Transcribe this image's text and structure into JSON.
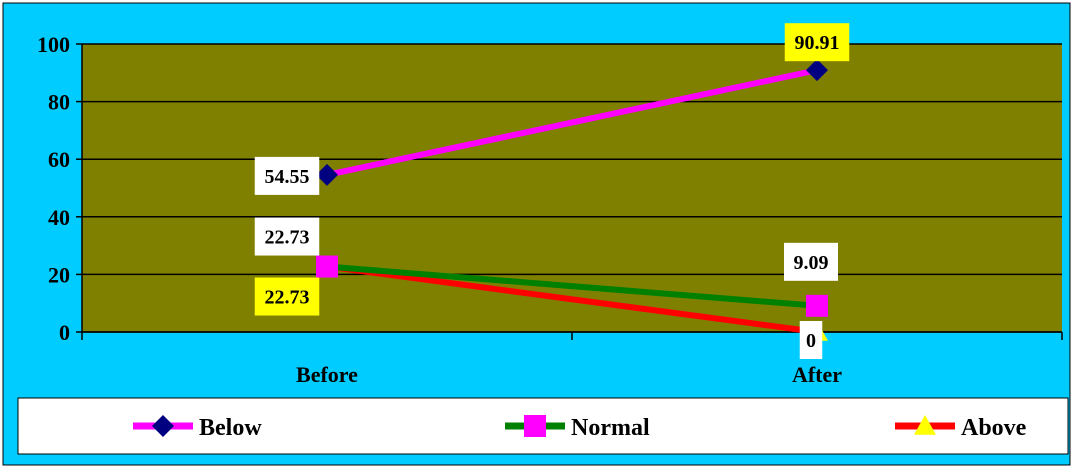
{
  "colors": {
    "outer_background": "#00ccff",
    "plot_background": "#808000",
    "frame": "#000000",
    "gridline": "#000000",
    "legend_background": "#ffffff",
    "label_box_white": "#ffffff",
    "label_box_yellow": "#ffff00"
  },
  "chart_data": {
    "type": "line",
    "categories": [
      "Before",
      "After"
    ],
    "ylim": [
      0,
      100
    ],
    "yticks": [
      "0",
      "20",
      "40",
      "60",
      "80",
      "100"
    ],
    "grid": true,
    "legend_position": "bottom",
    "series": [
      {
        "name": "Below",
        "values": [
          54.55,
          90.91
        ],
        "labels": [
          "54.55",
          "90.91"
        ],
        "line_color": "#ff00ff",
        "marker": "diamond",
        "marker_color": "#000080",
        "label_box": [
          "white",
          "yellow"
        ]
      },
      {
        "name": "Normal",
        "values": [
          22.73,
          9.09
        ],
        "labels": [
          "22.73",
          "9.09"
        ],
        "line_color": "#008000",
        "marker": "square",
        "marker_color": "#ff00ff",
        "label_box": [
          "white",
          "white"
        ]
      },
      {
        "name": "Above",
        "values": [
          22.73,
          0
        ],
        "labels": [
          "22.73",
          "0"
        ],
        "line_color": "#ff0000",
        "marker": "triangle",
        "marker_color": "#ffff00",
        "label_box": [
          "yellow",
          "white"
        ]
      }
    ]
  }
}
